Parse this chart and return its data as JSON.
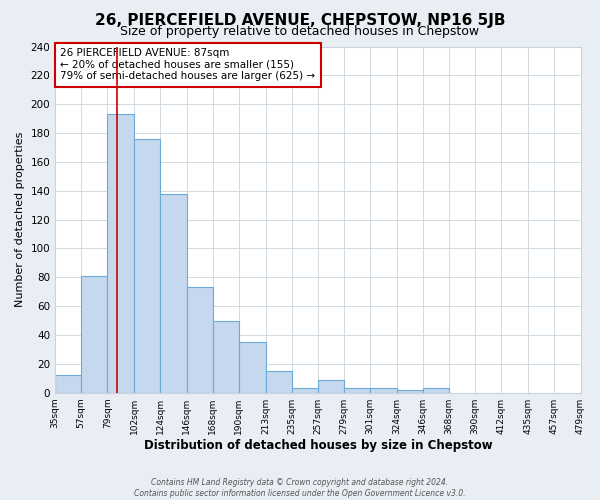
{
  "title": "26, PIERCEFIELD AVENUE, CHEPSTOW, NP16 5JB",
  "subtitle": "Size of property relative to detached houses in Chepstow",
  "xlabel": "Distribution of detached houses by size in Chepstow",
  "ylabel": "Number of detached properties",
  "bar_values": [
    12,
    81,
    193,
    176,
    138,
    73,
    50,
    35,
    15,
    3,
    9,
    3,
    3,
    2,
    3
  ],
  "bin_edges": [
    35,
    57,
    79,
    102,
    124,
    146,
    168,
    190,
    213,
    235,
    257,
    279,
    301,
    324,
    346,
    368,
    390,
    412,
    435,
    457,
    479
  ],
  "tick_labels": [
    "35sqm",
    "57sqm",
    "79sqm",
    "102sqm",
    "124sqm",
    "146sqm",
    "168sqm",
    "190sqm",
    "213sqm",
    "235sqm",
    "257sqm",
    "279sqm",
    "301sqm",
    "324sqm",
    "346sqm",
    "368sqm",
    "390sqm",
    "412sqm",
    "435sqm",
    "457sqm",
    "479sqm"
  ],
  "bar_color": "#c5d8ee",
  "bar_edge_color": "#6aaad4",
  "red_line_x": 87,
  "ylim": [
    0,
    240
  ],
  "yticks": [
    0,
    20,
    40,
    60,
    80,
    100,
    120,
    140,
    160,
    180,
    200,
    220,
    240
  ],
  "annotation_title": "26 PIERCEFIELD AVENUE: 87sqm",
  "annotation_line1": "← 20% of detached houses are smaller (155)",
  "annotation_line2": "79% of semi-detached houses are larger (625) →",
  "footnote1": "Contains HM Land Registry data © Crown copyright and database right 2024.",
  "footnote2": "Contains public sector information licensed under the Open Government Licence v3.0.",
  "background_color": "#e8eef4",
  "plot_background": "#ffffff",
  "grid_color": "#c8d4df",
  "title_fontsize": 11,
  "subtitle_fontsize": 9,
  "xlabel_fontsize": 8.5,
  "ylabel_fontsize": 8,
  "annotation_box_color": "#ffffff",
  "annotation_box_edge": "#cc0000",
  "red_line_color": "#cc0000"
}
